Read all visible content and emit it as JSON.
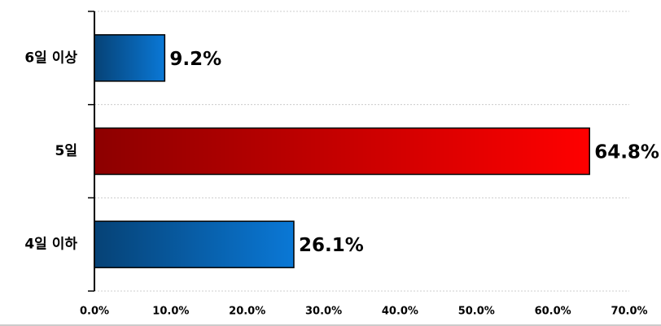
{
  "chart_data": {
    "type": "hbar",
    "categories": [
      "6일 이상",
      "5일",
      "4일 이하"
    ],
    "values": [
      9.2,
      64.8,
      26.1
    ],
    "value_labels": [
      "9.2%",
      "64.8%",
      "26.1%"
    ],
    "colors": [
      "#0a78d6",
      "#ff0000",
      "#0a78d6"
    ],
    "xlim": [
      0,
      70
    ],
    "xticks": [
      {
        "value": 0,
        "label": "0.0%"
      },
      {
        "value": 10,
        "label": "10.0%"
      },
      {
        "value": 20,
        "label": "20.0%"
      },
      {
        "value": 30,
        "label": "30.0%"
      },
      {
        "value": 40,
        "label": "40.0%"
      },
      {
        "value": 50,
        "label": "50.0%"
      },
      {
        "value": 60,
        "label": "60.0%"
      },
      {
        "value": 70,
        "label": "70.0%"
      }
    ]
  }
}
